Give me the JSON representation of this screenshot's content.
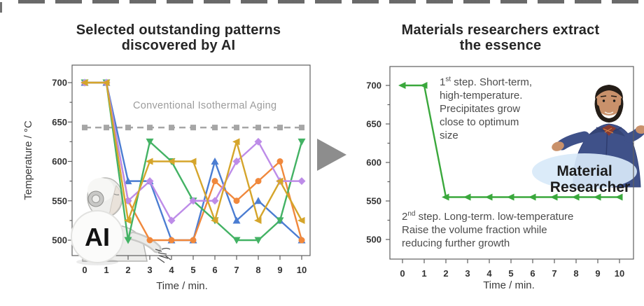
{
  "left_panel": {
    "title_line1": "Selected outstanding patterns",
    "title_line2": "discovered by AI",
    "conventional_label": "Conventional Isothermal Aging",
    "ai_badge": "AI"
  },
  "arrow": {
    "direction": "right",
    "color": "#8d8d8d"
  },
  "right_panel": {
    "title_line1": "Materials researchers extract",
    "title_line2": "the essence",
    "researcher_label_line1": "Material",
    "researcher_label_line2": "Researcher",
    "step1": {
      "num": "1",
      "ordinal": "st",
      "line1_rest": " step. Short-term,",
      "lines": [
        "high-temperature.",
        "Precipitates grow",
        "close to optimum",
        "size"
      ]
    },
    "step2": {
      "num": "2",
      "ordinal": "nd",
      "line1_rest": " step. Long-term. low-temperature",
      "lines": [
        "Raise the volume fraction while",
        "reducing further growth"
      ]
    }
  },
  "chart_data": [
    {
      "id": "ai-discovered-patterns",
      "type": "line",
      "title": "Selected outstanding patterns discovered by AI",
      "xlabel": "Time / min.",
      "ylabel": "Temperature / °C",
      "x": [
        0,
        1,
        2,
        3,
        4,
        5,
        6,
        7,
        8,
        9,
        10
      ],
      "xlim": [
        -0.6,
        10.6
      ],
      "ylim": [
        480,
        722
      ],
      "yticks": [
        500,
        550,
        600,
        650,
        700
      ],
      "y_minor_ticks": [
        525,
        575,
        625,
        675
      ],
      "grid": false,
      "legend": "none",
      "series": [
        {
          "name": "conventional-isothermal-aging",
          "label": "Conventional Isothermal Aging",
          "color": "#a6a6a6",
          "marker": "square",
          "line": "dashed",
          "values": [
            643,
            643,
            643,
            643,
            643,
            643,
            643,
            643,
            643,
            643,
            643
          ]
        },
        {
          "name": "ai-pattern-blue",
          "color": "#4b7dd2",
          "marker": "triangle-up",
          "line": "solid",
          "values": [
            700,
            700,
            575,
            575,
            500,
            500,
            600,
            525,
            550,
            525,
            500
          ]
        },
        {
          "name": "ai-pattern-orange",
          "color": "#f0883c",
          "marker": "circle",
          "line": "solid",
          "values": [
            700,
            700,
            550,
            500,
            500,
            500,
            575,
            550,
            575,
            600,
            500
          ]
        },
        {
          "name": "ai-pattern-green",
          "color": "#43b264",
          "marker": "triangle-down",
          "line": "solid",
          "values": [
            700,
            700,
            500,
            625,
            600,
            550,
            525,
            500,
            500,
            525,
            625
          ]
        },
        {
          "name": "ai-pattern-purple",
          "color": "#bd8ce8",
          "marker": "diamond",
          "line": "solid",
          "values": [
            700,
            700,
            550,
            575,
            525,
            550,
            550,
            600,
            625,
            575,
            575
          ]
        },
        {
          "name": "ai-pattern-gold",
          "color": "#d5a52b",
          "marker": "triangle-left",
          "line": "solid",
          "values": [
            700,
            700,
            525,
            600,
            600,
            600,
            525,
            625,
            525,
            575,
            525
          ]
        }
      ],
      "annotations": [
        {
          "text": "Conventional Isothermal Aging",
          "x": 5.9,
          "y": 660,
          "color": "#9c9c9c"
        }
      ]
    },
    {
      "id": "extracted-essence",
      "type": "line",
      "title": "Materials researchers extract the essence",
      "xlabel": "Time / min.",
      "ylabel": "",
      "x": [
        0,
        1,
        2,
        3,
        4,
        5,
        6,
        7,
        8,
        9,
        10
      ],
      "xlim": [
        -0.6,
        10.6
      ],
      "ylim": [
        480,
        722
      ],
      "yticks": [
        500,
        550,
        600,
        650,
        700
      ],
      "y_minor_ticks": [
        525,
        575,
        625,
        675
      ],
      "grid": false,
      "legend": "none",
      "series": [
        {
          "name": "two-step-aging-profile",
          "color": "#3aa83c",
          "marker": "triangle-left",
          "line": "solid",
          "values": [
            700,
            700,
            555,
            555,
            555,
            555,
            555,
            555,
            555,
            555,
            555
          ]
        }
      ],
      "annotations": [
        {
          "text": "1st step. Short-term, high-temperature. Precipitates grow close to optimum size",
          "x": 1.7,
          "y": 705
        },
        {
          "text": "2nd step. Long-term. low-temperature Raise the volume fraction while reducing further growth",
          "x": 0.1,
          "y": 540
        }
      ]
    }
  ]
}
